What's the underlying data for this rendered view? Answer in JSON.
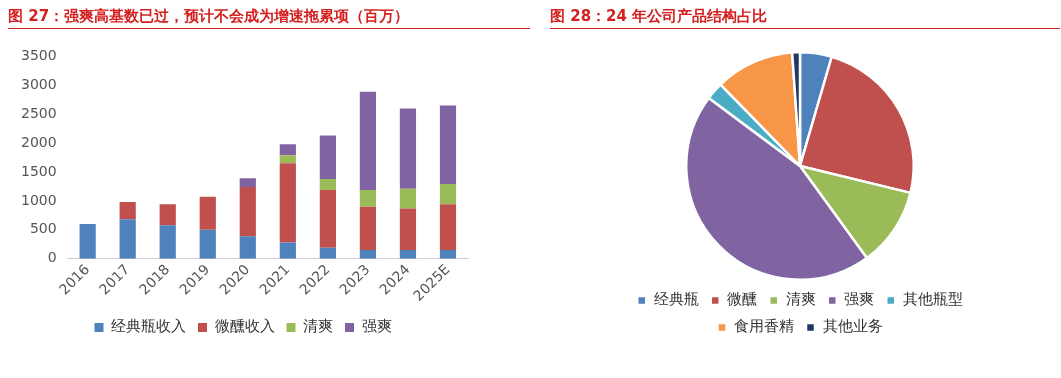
{
  "chart_data": [
    {
      "type": "bar",
      "title": "图 27：强爽高基数已过，预计不会成为增速拖累项（百万）",
      "categories": [
        "2016",
        "2017",
        "2018",
        "2019",
        "2020",
        "2021",
        "2022",
        "2023",
        "2024",
        "2025E"
      ],
      "stacked": true,
      "ylim": [
        0,
        3500
      ],
      "yticks": [
        0,
        500,
        1000,
        1500,
        2000,
        2500,
        3000,
        3500
      ],
      "grid": false,
      "legend": "bottom",
      "series": [
        {
          "name": "经典瓶收入",
          "color": "#4f81bd",
          "values": [
            600,
            680,
            580,
            500,
            390,
            280,
            190,
            150,
            150,
            150
          ]
        },
        {
          "name": "微醺收入",
          "color": "#c0504d",
          "values": [
            null,
            300,
            360,
            570,
            850,
            1370,
            1000,
            750,
            720,
            790
          ]
        },
        {
          "name": "清爽",
          "color": "#9bbb59",
          "values": [
            null,
            null,
            null,
            null,
            null,
            140,
            190,
            290,
            340,
            350
          ]
        },
        {
          "name": "强爽",
          "color": "#8064a2",
          "values": [
            null,
            null,
            null,
            null,
            150,
            190,
            750,
            1700,
            1390,
            1360
          ]
        }
      ]
    },
    {
      "type": "pie",
      "title": "图 28：24 年公司产品结构占比",
      "legend": "bottom",
      "categories": [
        "经典瓶",
        "微醺",
        "清爽",
        "强爽",
        "其他瓶型",
        "食用香精",
        "其他业务"
      ],
      "values": [
        4.5,
        24.3,
        11.2,
        45.2,
        2.5,
        11.2,
        1.1
      ],
      "colors": [
        "#4f81bd",
        "#c0504d",
        "#9bbb59",
        "#8064a2",
        "#4bacc6",
        "#f79646",
        "#1f3864"
      ]
    }
  ]
}
